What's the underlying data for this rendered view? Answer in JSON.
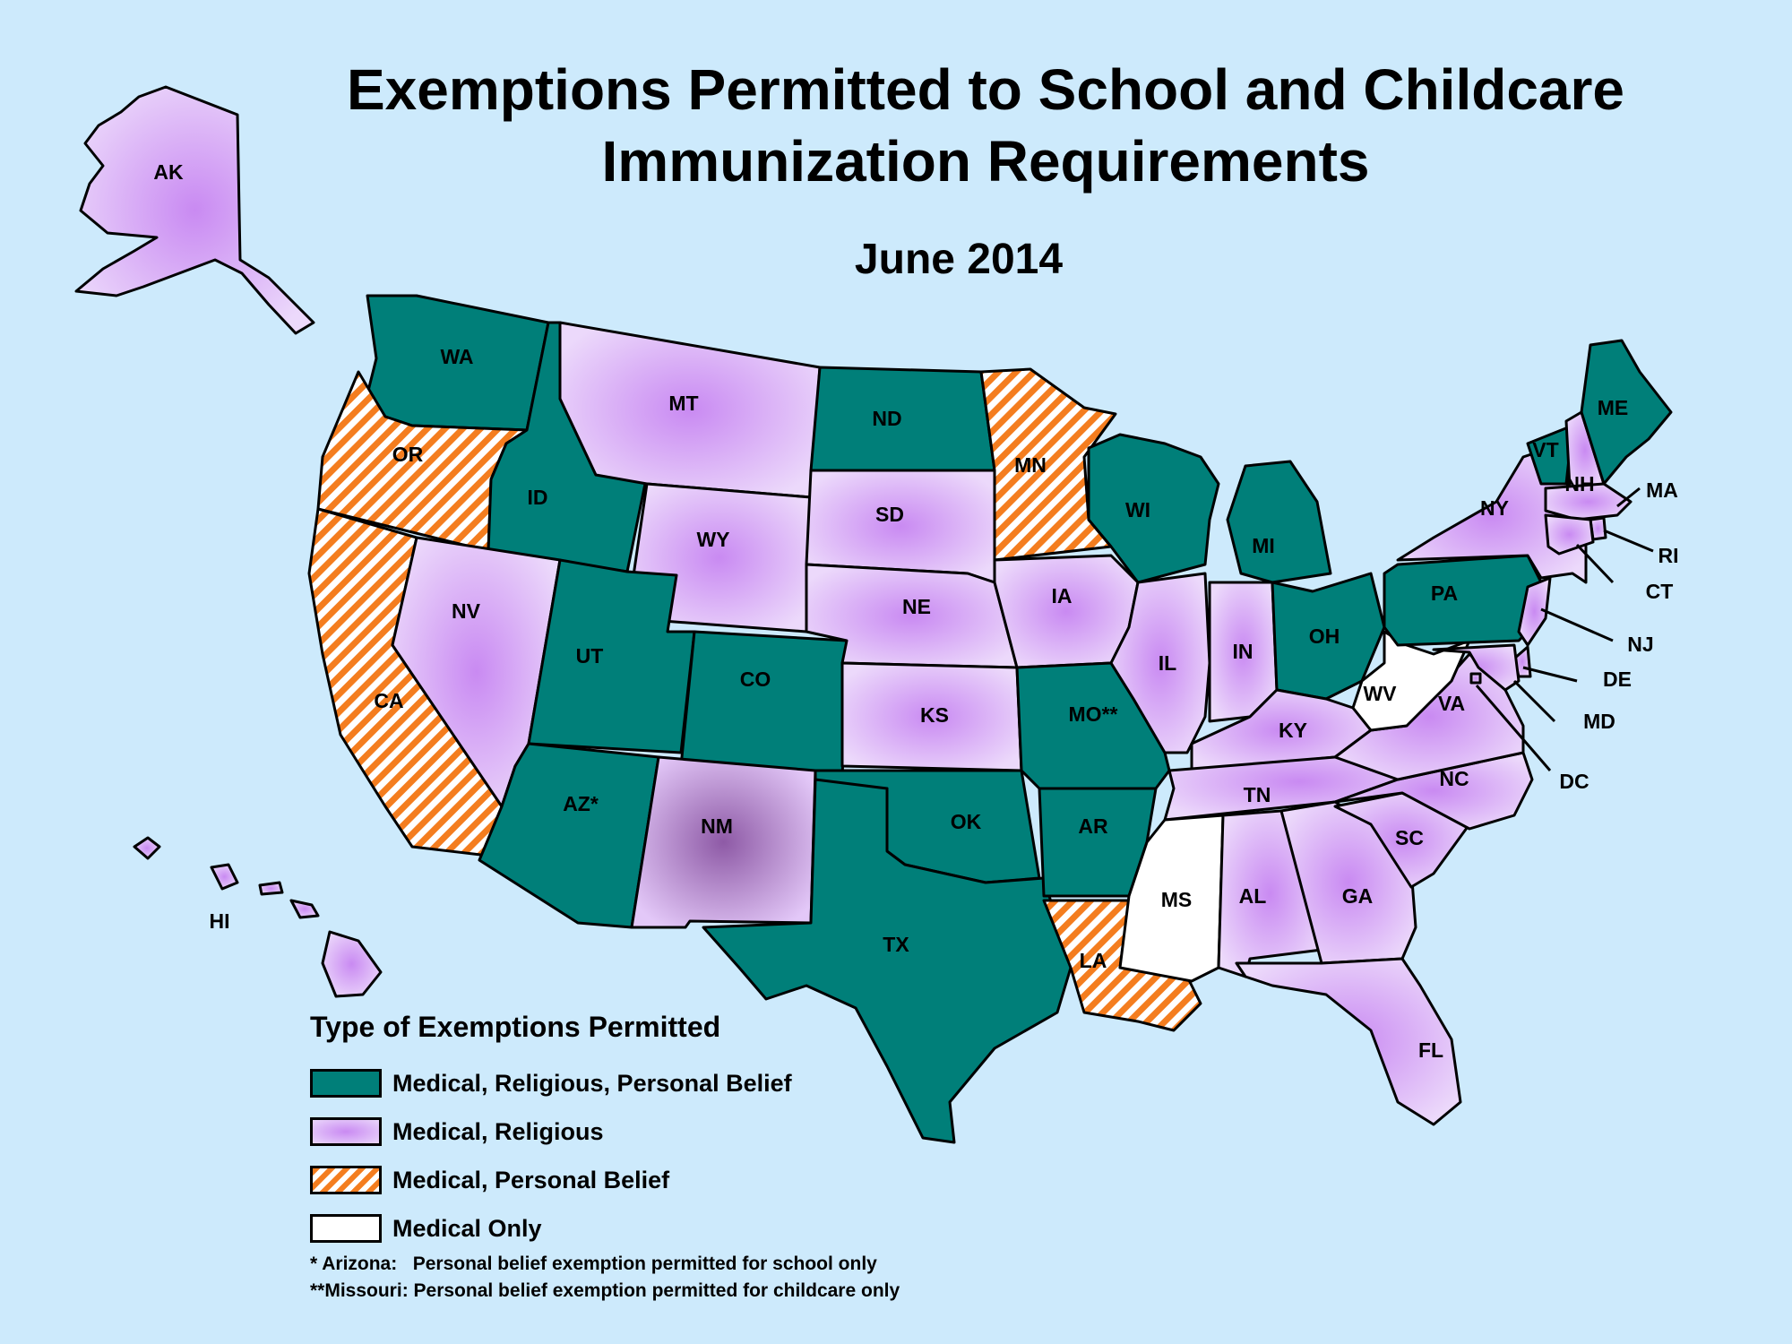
{
  "title": "Exemptions Permitted to School and Childcare Immunization Requirements",
  "subtitle": "June 2014",
  "colors": {
    "background": "#cdeafc",
    "medical_religious_personal_belief": "#007f79",
    "medical_religious": "#d9b0f6",
    "medical_personal_belief_stripe": "#f47d1f",
    "medical_only": "#ffffff"
  },
  "legend": {
    "title": "Type of Exemptions Permitted",
    "items": [
      {
        "key": "medical_religious_personal_belief",
        "label": "Medical, Religious, Personal Belief"
      },
      {
        "key": "medical_religious",
        "label": "Medical, Religious"
      },
      {
        "key": "medical_personal_belief",
        "label": "Medical, Personal Belief"
      },
      {
        "key": "medical_only",
        "label": "Medical Only"
      }
    ]
  },
  "notes": [
    "* Arizona:   Personal belief exemption permitted for school only",
    "**Missouri: Personal belief exemption permitted for childcare only"
  ],
  "states": [
    {
      "abbr": "AK",
      "label": "AK",
      "category": "medical_religious"
    },
    {
      "abbr": "HI",
      "label": "HI",
      "category": "medical_religious"
    },
    {
      "abbr": "WA",
      "label": "WA",
      "category": "medical_religious_personal_belief"
    },
    {
      "abbr": "OR",
      "label": "OR",
      "category": "medical_personal_belief"
    },
    {
      "abbr": "CA",
      "label": "CA",
      "category": "medical_personal_belief"
    },
    {
      "abbr": "ID",
      "label": "ID",
      "category": "medical_religious_personal_belief"
    },
    {
      "abbr": "NV",
      "label": "NV",
      "category": "medical_religious"
    },
    {
      "abbr": "MT",
      "label": "MT",
      "category": "medical_religious"
    },
    {
      "abbr": "WY",
      "label": "WY",
      "category": "medical_religious"
    },
    {
      "abbr": "UT",
      "label": "UT",
      "category": "medical_religious_personal_belief"
    },
    {
      "abbr": "AZ",
      "label": "AZ*",
      "category": "medical_religious_personal_belief"
    },
    {
      "abbr": "CO",
      "label": "CO",
      "category": "medical_religious_personal_belief"
    },
    {
      "abbr": "NM",
      "label": "NM",
      "category": "medical_religious"
    },
    {
      "abbr": "ND",
      "label": "ND",
      "category": "medical_religious_personal_belief"
    },
    {
      "abbr": "SD",
      "label": "SD",
      "category": "medical_religious"
    },
    {
      "abbr": "NE",
      "label": "NE",
      "category": "medical_religious"
    },
    {
      "abbr": "KS",
      "label": "KS",
      "category": "medical_religious"
    },
    {
      "abbr": "OK",
      "label": "OK",
      "category": "medical_religious_personal_belief"
    },
    {
      "abbr": "TX",
      "label": "TX",
      "category": "medical_religious_personal_belief"
    },
    {
      "abbr": "MN",
      "label": "MN",
      "category": "medical_personal_belief"
    },
    {
      "abbr": "IA",
      "label": "IA",
      "category": "medical_religious"
    },
    {
      "abbr": "MO",
      "label": "MO**",
      "category": "medical_religious_personal_belief"
    },
    {
      "abbr": "AR",
      "label": "AR",
      "category": "medical_religious_personal_belief"
    },
    {
      "abbr": "LA",
      "label": "LA",
      "category": "medical_personal_belief"
    },
    {
      "abbr": "WI",
      "label": "WI",
      "category": "medical_religious_personal_belief"
    },
    {
      "abbr": "IL",
      "label": "IL",
      "category": "medical_religious"
    },
    {
      "abbr": "MI",
      "label": "MI",
      "category": "medical_religious_personal_belief"
    },
    {
      "abbr": "IN",
      "label": "IN",
      "category": "medical_religious"
    },
    {
      "abbr": "OH",
      "label": "OH",
      "category": "medical_religious_personal_belief"
    },
    {
      "abbr": "KY",
      "label": "KY",
      "category": "medical_religious"
    },
    {
      "abbr": "TN",
      "label": "TN",
      "category": "medical_religious"
    },
    {
      "abbr": "MS",
      "label": "MS",
      "category": "medical_only"
    },
    {
      "abbr": "AL",
      "label": "AL",
      "category": "medical_religious"
    },
    {
      "abbr": "GA",
      "label": "GA",
      "category": "medical_religious"
    },
    {
      "abbr": "FL",
      "label": "FL",
      "category": "medical_religious"
    },
    {
      "abbr": "SC",
      "label": "SC",
      "category": "medical_religious"
    },
    {
      "abbr": "NC",
      "label": "NC",
      "category": "medical_religious"
    },
    {
      "abbr": "VA",
      "label": "VA",
      "category": "medical_religious"
    },
    {
      "abbr": "WV",
      "label": "WV",
      "category": "medical_only"
    },
    {
      "abbr": "PA",
      "label": "PA",
      "category": "medical_religious_personal_belief"
    },
    {
      "abbr": "NY",
      "label": "NY",
      "category": "medical_religious"
    },
    {
      "abbr": "VT",
      "label": "VT",
      "category": "medical_religious_personal_belief"
    },
    {
      "abbr": "NH",
      "label": "NH",
      "category": "medical_religious"
    },
    {
      "abbr": "ME",
      "label": "ME",
      "category": "medical_religious_personal_belief"
    },
    {
      "abbr": "MA",
      "label": "MA",
      "category": "medical_religious"
    },
    {
      "abbr": "RI",
      "label": "RI",
      "category": "medical_religious"
    },
    {
      "abbr": "CT",
      "label": "CT",
      "category": "medical_religious"
    },
    {
      "abbr": "NJ",
      "label": "NJ",
      "category": "medical_religious"
    },
    {
      "abbr": "DE",
      "label": "DE",
      "category": "medical_religious"
    },
    {
      "abbr": "MD",
      "label": "MD",
      "category": "medical_religious"
    },
    {
      "abbr": "DC",
      "label": "DC",
      "category": "medical_religious"
    }
  ]
}
